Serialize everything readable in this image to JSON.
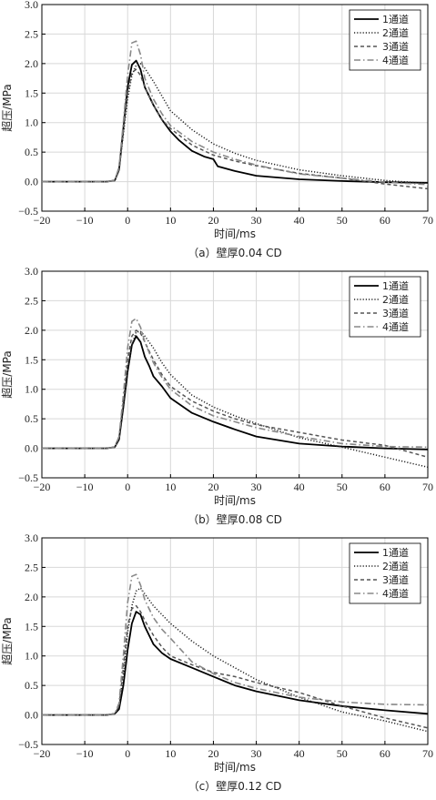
{
  "chart_data": [
    {
      "type": "line",
      "caption": "（a）壁厚0.04 CD",
      "xlabel": "时间/ms",
      "ylabel": "超压/MPa",
      "xlim": [
        -20,
        70
      ],
      "ylim": [
        -0.5,
        3.0
      ],
      "xticks": [
        "−20",
        "−10",
        "0",
        "10",
        "20",
        "30",
        "40",
        "50",
        "60",
        "70"
      ],
      "yticks": [
        "−0.5",
        "0.0",
        "0.5",
        "1.0",
        "1.5",
        "2.0",
        "2.5",
        "3.0"
      ],
      "grid": true,
      "legend_position": "top-right",
      "series": [
        {
          "name": "1通道",
          "style": "solid",
          "color": "#000000",
          "x": [
            -20,
            -5,
            -3,
            -2,
            -1,
            0,
            1,
            2,
            3,
            4,
            6,
            8,
            10,
            12,
            15,
            18,
            20,
            21,
            25,
            30,
            40,
            50,
            60,
            70
          ],
          "y": [
            0,
            0,
            0.02,
            0.2,
            0.9,
            1.6,
            1.98,
            2.05,
            1.9,
            1.6,
            1.3,
            1.05,
            0.85,
            0.7,
            0.52,
            0.42,
            0.38,
            0.26,
            0.18,
            0.1,
            0.04,
            0.01,
            -0.01,
            -0.02
          ]
        },
        {
          "name": "2通道",
          "style": "dotted",
          "color": "#222222",
          "x": [
            -20,
            -5,
            -3,
            -2,
            -1,
            0,
            1,
            2,
            3,
            4,
            6,
            8,
            10,
            15,
            20,
            25,
            30,
            40,
            50,
            60,
            70
          ],
          "y": [
            0,
            0,
            0.02,
            0.2,
            0.8,
            1.4,
            1.8,
            1.97,
            2.0,
            1.92,
            1.7,
            1.45,
            1.2,
            0.88,
            0.64,
            0.48,
            0.36,
            0.2,
            0.1,
            0.02,
            -0.03
          ]
        },
        {
          "name": "3通道",
          "style": "dashed",
          "color": "#555555",
          "x": [
            -20,
            -5,
            -3,
            -2,
            -1,
            0,
            1,
            2,
            3,
            4,
            6,
            8,
            10,
            15,
            20,
            25,
            30,
            40,
            50,
            60,
            70
          ],
          "y": [
            0,
            0,
            0.02,
            0.2,
            0.85,
            1.5,
            1.85,
            1.9,
            1.8,
            1.6,
            1.3,
            1.05,
            0.9,
            0.62,
            0.45,
            0.35,
            0.27,
            0.14,
            0.06,
            -0.04,
            -0.12
          ]
        },
        {
          "name": "4通道",
          "style": "dashdot",
          "color": "#888888",
          "x": [
            -20,
            -5,
            -3,
            -2,
            -1,
            0,
            1,
            2,
            3,
            4,
            6,
            8,
            10,
            15,
            20,
            25,
            30,
            40,
            50,
            60,
            70
          ],
          "y": [
            0,
            0,
            0.02,
            0.25,
            1.0,
            1.8,
            2.35,
            2.38,
            2.15,
            1.75,
            1.4,
            1.15,
            0.95,
            0.68,
            0.5,
            0.38,
            0.28,
            0.13,
            0.06,
            -0.01,
            -0.05
          ]
        }
      ]
    },
    {
      "type": "line",
      "caption": "（b）壁厚0.08 CD",
      "xlabel": "时间/ms",
      "ylabel": "超压/MPa",
      "xlim": [
        -20,
        70
      ],
      "ylim": [
        -0.5,
        3.0
      ],
      "xticks": [
        "−20",
        "−10",
        "0",
        "10",
        "20",
        "30",
        "40",
        "50",
        "60",
        "70"
      ],
      "yticks": [
        "−0.5",
        "0.0",
        "0.5",
        "1.0",
        "1.5",
        "2.0",
        "2.5",
        "3.0"
      ],
      "grid": true,
      "legend_position": "top-right",
      "series": [
        {
          "name": "1通道",
          "style": "solid",
          "color": "#000000",
          "x": [
            -20,
            -5,
            -3,
            -2,
            -1,
            0,
            1,
            2,
            3,
            4,
            5,
            6,
            8,
            10,
            15,
            20,
            25,
            30,
            40,
            50,
            60,
            70
          ],
          "y": [
            0,
            0,
            0.02,
            0.15,
            0.7,
            1.3,
            1.75,
            1.9,
            1.8,
            1.55,
            1.4,
            1.22,
            1.05,
            0.85,
            0.6,
            0.45,
            0.32,
            0.2,
            0.08,
            0.03,
            0,
            -0.02
          ]
        },
        {
          "name": "2通道",
          "style": "dotted",
          "color": "#222222",
          "x": [
            -20,
            -5,
            -3,
            -2,
            -1,
            0,
            1,
            2,
            3,
            4,
            6,
            8,
            10,
            15,
            20,
            25,
            30,
            40,
            50,
            60,
            70
          ],
          "y": [
            0,
            0,
            0.02,
            0.15,
            0.7,
            1.3,
            1.75,
            1.97,
            1.98,
            1.9,
            1.7,
            1.45,
            1.25,
            0.9,
            0.7,
            0.55,
            0.42,
            0.18,
            0.02,
            -0.15,
            -0.32
          ]
        },
        {
          "name": "3通道",
          "style": "dashed",
          "color": "#555555",
          "x": [
            -20,
            -5,
            -3,
            -2,
            -1,
            0,
            1,
            2,
            3,
            4,
            6,
            8,
            10,
            15,
            20,
            25,
            30,
            40,
            50,
            60,
            70
          ],
          "y": [
            0,
            0,
            0.02,
            0.2,
            0.8,
            1.5,
            1.9,
            2.0,
            1.95,
            1.8,
            1.5,
            1.25,
            1.05,
            0.8,
            0.63,
            0.5,
            0.4,
            0.27,
            0.14,
            0.05,
            -0.15
          ]
        },
        {
          "name": "4通道",
          "style": "dashdot",
          "color": "#888888",
          "x": [
            -20,
            -5,
            -3,
            -2,
            -1,
            0,
            1,
            2,
            3,
            4,
            6,
            8,
            10,
            15,
            20,
            25,
            30,
            40,
            50,
            60,
            70
          ],
          "y": [
            0,
            0,
            0.02,
            0.2,
            0.9,
            1.7,
            2.15,
            2.2,
            2.05,
            1.8,
            1.45,
            1.2,
            1.0,
            0.72,
            0.55,
            0.45,
            0.35,
            0.2,
            0.08,
            0.03,
            0.02
          ]
        }
      ]
    },
    {
      "type": "line",
      "caption": "（c）壁厚0.12 CD",
      "xlabel": "时间/ms",
      "ylabel": "超压/MPa",
      "xlim": [
        -20,
        70
      ],
      "ylim": [
        -0.5,
        3.0
      ],
      "xticks": [
        "−20",
        "−10",
        "0",
        "10",
        "20",
        "30",
        "40",
        "50",
        "60",
        "70"
      ],
      "yticks": [
        "−0.5",
        "0.0",
        "0.5",
        "1.0",
        "1.5",
        "2.0",
        "2.5",
        "3.0"
      ],
      "grid": true,
      "legend_position": "top-right",
      "series": [
        {
          "name": "1通道",
          "style": "solid",
          "color": "#000000",
          "x": [
            -20,
            -5,
            -3,
            -2,
            -1,
            0,
            1,
            2,
            3,
            4,
            5,
            6,
            8,
            10,
            15,
            20,
            25,
            30,
            40,
            50,
            60,
            70
          ],
          "y": [
            0,
            0,
            0.02,
            0.1,
            0.5,
            1.1,
            1.55,
            1.75,
            1.7,
            1.5,
            1.35,
            1.2,
            1.05,
            0.95,
            0.8,
            0.65,
            0.5,
            0.4,
            0.25,
            0.15,
            0.08,
            0.02
          ]
        },
        {
          "name": "2通道",
          "style": "dotted",
          "color": "#222222",
          "x": [
            -20,
            -5,
            -3,
            -2,
            -1,
            0,
            1,
            2,
            3,
            4,
            6,
            8,
            10,
            15,
            20,
            25,
            30,
            40,
            50,
            60,
            70
          ],
          "y": [
            0,
            0,
            0.02,
            0.15,
            0.7,
            1.4,
            1.85,
            2.1,
            2.15,
            2.05,
            1.85,
            1.7,
            1.55,
            1.25,
            1.0,
            0.8,
            0.6,
            0.3,
            0.05,
            -0.1,
            -0.28
          ]
        },
        {
          "name": "3通道",
          "style": "dashed",
          "color": "#555555",
          "x": [
            -20,
            -5,
            -3,
            -2,
            -1,
            0,
            1,
            2,
            3,
            4,
            6,
            8,
            10,
            15,
            20,
            25,
            30,
            40,
            50,
            60,
            70
          ],
          "y": [
            0,
            0,
            0.02,
            0.15,
            0.8,
            1.5,
            1.8,
            1.85,
            1.75,
            1.6,
            1.35,
            1.15,
            1.0,
            0.85,
            0.72,
            0.65,
            0.55,
            0.38,
            0.15,
            -0.05,
            -0.22
          ]
        },
        {
          "name": "4通道",
          "style": "dashdot",
          "color": "#888888",
          "x": [
            -20,
            -5,
            -3,
            -2,
            -1,
            0,
            1,
            2,
            3,
            4,
            6,
            8,
            10,
            15,
            20,
            25,
            30,
            40,
            50,
            60,
            70
          ],
          "y": [
            0,
            0,
            0.02,
            0.2,
            1.0,
            1.9,
            2.35,
            2.38,
            2.2,
            1.95,
            1.65,
            1.45,
            1.3,
            0.9,
            0.7,
            0.55,
            0.45,
            0.3,
            0.22,
            0.18,
            0.17
          ]
        }
      ]
    }
  ]
}
